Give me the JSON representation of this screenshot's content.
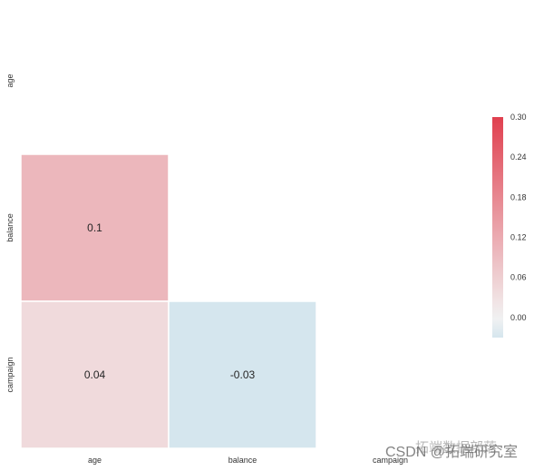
{
  "chart_data": {
    "type": "heatmap",
    "variables": [
      "age",
      "balance",
      "campaign"
    ],
    "matrix": [
      [
        null,
        null,
        null
      ],
      [
        0.1,
        null,
        null
      ],
      [
        0.04,
        -0.03,
        null
      ]
    ],
    "annotations": [
      {
        "row": 1,
        "col": 0,
        "value": 0.1,
        "label": "0.1"
      },
      {
        "row": 2,
        "col": 0,
        "value": 0.04,
        "label": "0.04"
      },
      {
        "row": 2,
        "col": 1,
        "value": -0.03,
        "label": "-0.03"
      }
    ],
    "mask": "upper-triangle-and-diagonal",
    "colormap": {
      "low": "#d5e6ee",
      "mid": "#f2f2f2",
      "high": "#e0404f"
    },
    "colorbar": {
      "range": [
        -0.03,
        0.3
      ],
      "ticks": [
        0.0,
        0.06,
        0.12,
        0.18,
        0.24,
        0.3
      ],
      "tick_labels": [
        "0.00",
        "0.06",
        "0.12",
        "0.18",
        "0.24",
        "0.30"
      ],
      "placement": "right"
    },
    "title": "",
    "xlabel": "",
    "ylabel": ""
  },
  "watermark": {
    "line1": "CSDN @拓端研究室",
    "line2": "拓端数据部落"
  }
}
